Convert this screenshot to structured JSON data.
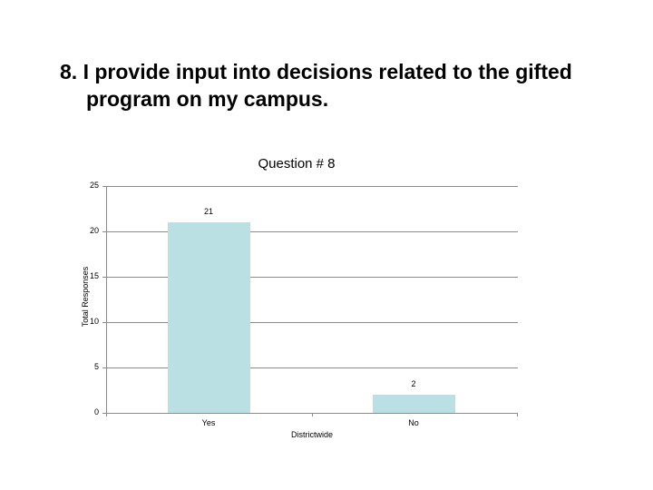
{
  "slide": {
    "title_line1": "8. I provide input into decisions related to the gifted",
    "title_line2": "program on my campus."
  },
  "chart_data": {
    "type": "bar",
    "title": "Question # 8",
    "categories": [
      "Yes",
      "No"
    ],
    "values": [
      21,
      2
    ],
    "data_labels": [
      "21",
      "2"
    ],
    "xlabel": "Districtwide",
    "ylabel": "Total Responses",
    "ylim": [
      0,
      25
    ],
    "yticks": [
      "0",
      "5",
      "10",
      "15",
      "20",
      "25"
    ],
    "grid": true,
    "legend": "none",
    "bar_color": "#bae0e4"
  }
}
